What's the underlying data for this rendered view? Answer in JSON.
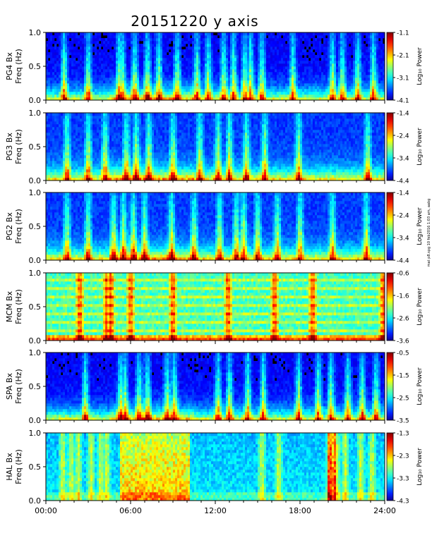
{
  "chart_data": {
    "type": "heatmap",
    "title": "20151220 y axis",
    "x_axis": {
      "range_hours": [
        0,
        24
      ],
      "ticks": [
        "00:00",
        "06:00",
        "12:00",
        "18:00",
        "24:00"
      ]
    },
    "credit": "mat p8.spg 10 feb2016 1:03 am, aabg",
    "panels": [
      {
        "station": "PG4",
        "ylabel": "PG4 Bx\nFreq (Hz)",
        "ylim": [
          0.0,
          1.0
        ],
        "yticks": [
          "0.0",
          "0.5",
          "1.0"
        ],
        "colorbar_label": "Log₁₀ Power",
        "colorbar_range": [
          -4.1,
          -1.1
        ],
        "colorbar_ticks": [
          "-1.1",
          "-2.1",
          "-3.1",
          "-4.1"
        ],
        "bursts_hours": [
          1.3,
          3.0,
          5.2,
          5.4,
          6.3,
          7.2,
          8.0,
          9.3,
          10.7,
          11.5,
          12.6,
          13.3,
          14.1,
          14.5,
          15.3,
          17.5,
          20.3,
          21.0,
          22.1,
          23.2
        ],
        "activity": "low-mid"
      },
      {
        "station": "PG3",
        "ylabel": "PG3 Bx\nFreq (Hz)",
        "ylim": [
          0.0,
          1.0
        ],
        "yticks": [
          "0.0",
          "0.5",
          "1.0"
        ],
        "colorbar_label": "Log₁₀ Power",
        "colorbar_range": [
          -4.4,
          -1.4
        ],
        "colorbar_ticks": [
          "-1.4",
          "-2.4",
          "-3.4",
          "-4.4"
        ],
        "bursts_hours": [
          1.5,
          3.0,
          4.2,
          5.7,
          6.4,
          7.3,
          9.0,
          10.9,
          12.2,
          13.0,
          14.2,
          15.5,
          17.9,
          22.8
        ],
        "activity": "mid"
      },
      {
        "station": "PG2",
        "ylabel": "PG2 Bx\nFreq (Hz)",
        "ylim": [
          0.0,
          1.0
        ],
        "yticks": [
          "0.0",
          "0.5",
          "1.0"
        ],
        "colorbar_label": "Log₁₀ Power",
        "colorbar_range": [
          -4.4,
          -1.4
        ],
        "colorbar_ticks": [
          "-1.4",
          "-2.4",
          "-3.4",
          "-4.4"
        ],
        "bursts_hours": [
          1.5,
          3.0,
          4.8,
          5.5,
          6.2,
          7.0,
          8.9,
          10.5,
          12.3,
          13.5,
          14.0,
          15.0,
          16.4,
          18.0,
          20.3,
          22.7
        ],
        "activity": "mid"
      },
      {
        "station": "MCM",
        "ylabel": "MCM Bx\nFreq (Hz)",
        "ylim": [
          0.0,
          1.0
        ],
        "yticks": [
          "0.0",
          "0.5",
          "1.0"
        ],
        "colorbar_label": "Log₁₀ Power",
        "colorbar_range": [
          -3.6,
          -0.6
        ],
        "colorbar_ticks": [
          "-0.6",
          "-1.6",
          "-2.6",
          "-3.6"
        ],
        "bursts_hours": [
          2.4,
          4.3,
          4.6,
          6.0,
          9.0,
          12.9,
          16.2,
          18.9,
          23.9
        ],
        "activity": "banded"
      },
      {
        "station": "SPA",
        "ylabel": "SPA Bx\nFreq (Hz)",
        "ylim": [
          0.0,
          1.0
        ],
        "yticks": [
          "0.0",
          "0.5",
          "1.0"
        ],
        "colorbar_label": "Log₁₀ Power",
        "colorbar_range": [
          -3.5,
          -0.5
        ],
        "colorbar_ticks": [
          "-0.5",
          "-1.5",
          "-2.5",
          "-3.5"
        ],
        "bursts_hours": [
          2.8,
          5.3,
          5.6,
          6.6,
          7.2,
          8.6,
          9.1,
          12.2,
          13.0,
          14.3,
          15.4,
          17.9,
          19.3,
          20.2,
          21.4,
          22.4,
          23.4
        ],
        "activity": "low-mid"
      },
      {
        "station": "HAL",
        "ylabel": "HAL Bx\nFreq (Hz)",
        "ylim": [
          0.0,
          1.0
        ],
        "yticks": [
          "0.0",
          "0.5",
          "1.0"
        ],
        "colorbar_label": "Log₁₀ Power",
        "colorbar_range": [
          -4.3,
          -1.3
        ],
        "colorbar_ticks": [
          "-1.3",
          "-2.3",
          "-3.3",
          "-4.3"
        ],
        "bursts_hours": [
          1.2,
          1.8,
          2.3,
          3.2,
          3.9,
          4.3,
          15.3,
          16.5,
          20.1,
          20.6,
          21.2,
          22.3,
          23.1
        ],
        "activity": "high",
        "high_intervals_hours": [
          [
            5.2,
            10.2
          ],
          [
            19.9,
            20.6
          ]
        ]
      }
    ]
  }
}
